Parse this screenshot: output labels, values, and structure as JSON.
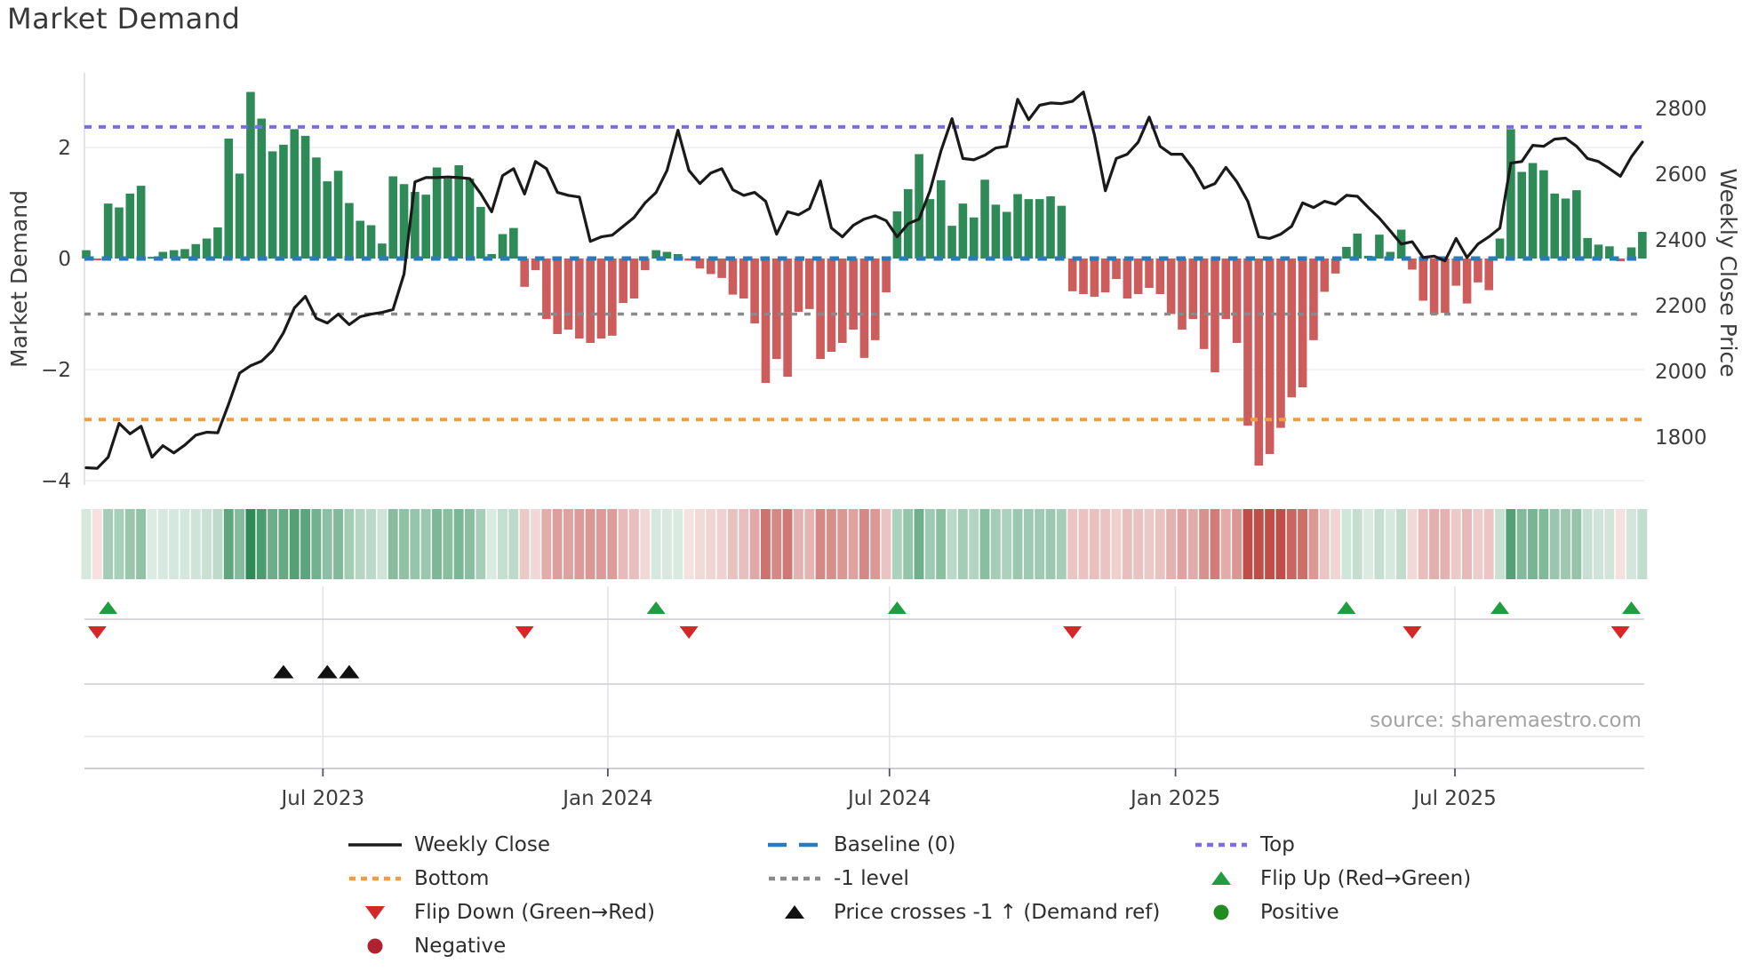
{
  "title": "Market Demand",
  "source": "source: sharemaestro.com",
  "colors": {
    "bar_positive": "#2E8B57",
    "bar_negative": "#CD5C5C",
    "heat_positive": "#2E8B57",
    "heat_negative": "#C04D48",
    "price_line": "#1a1a1a",
    "baseline": "#2b7bba",
    "top_line": "#7b6fde",
    "minus_one_line": "#8a8a8a",
    "bottom_line": "#ef9c42",
    "flip_up": "#1f9d3f",
    "flip_down": "#d62728",
    "price_cross": "#111111",
    "positive_dot": "#228B22",
    "negative_dot": "#b02230",
    "grid": "#ededf3",
    "panel_grid": "#ccccd4",
    "spine": "#d8d8e0",
    "text": "#3c3c3c",
    "muted_text": "#a3a3a3"
  },
  "chart_data": {
    "type": "bar+line combo with signal heatmap",
    "title": "Market Demand",
    "left_axis": {
      "label": "Market Demand",
      "tick_labels": [
        "2",
        "0",
        "−2",
        "−4"
      ],
      "tick_values": [
        2,
        0,
        -2,
        -4
      ],
      "ylim": [
        -4.35,
        3.35
      ]
    },
    "right_axis": {
      "label": "Weekly Close Price",
      "tick_values": [
        2800,
        2600,
        2400,
        2200,
        2000,
        1800
      ]
    },
    "x_ticks": [
      {
        "label": "Jul 2023",
        "week": 21.6
      },
      {
        "label": "Jan 2024",
        "week": 47.6
      },
      {
        "label": "Jul 2024",
        "week": 73.3
      },
      {
        "label": "Jan 2025",
        "week": 99.4
      },
      {
        "label": "Jul 2025",
        "week": 124.9
      }
    ],
    "reference_lines": {
      "top": 2.37,
      "baseline": 0,
      "minus_one": -1,
      "bottom": -2.9
    },
    "demand": [
      0.15,
      -0.03,
      0.99,
      0.92,
      1.17,
      1.31,
      0.03,
      0.12,
      0.15,
      0.17,
      0.26,
      0.36,
      0.56,
      2.16,
      1.53,
      3.0,
      2.52,
      1.93,
      2.05,
      2.33,
      2.21,
      1.82,
      1.39,
      1.58,
      1.0,
      0.68,
      0.6,
      0.27,
      1.48,
      1.34,
      1.2,
      1.15,
      1.64,
      1.44,
      1.68,
      1.44,
      0.93,
      0.08,
      0.44,
      0.55,
      -0.51,
      -0.21,
      -1.09,
      -1.36,
      -1.28,
      -1.44,
      -1.52,
      -1.44,
      -1.39,
      -0.8,
      -0.72,
      -0.21,
      0.15,
      0.12,
      0.08,
      -0.04,
      -0.18,
      -0.28,
      -0.35,
      -0.65,
      -0.72,
      -1.17,
      -2.24,
      -1.81,
      -2.13,
      -0.96,
      -0.91,
      -1.81,
      -1.68,
      -1.52,
      -1.28,
      -1.79,
      -1.47,
      -0.61,
      0.85,
      1.25,
      1.88,
      1.07,
      1.41,
      0.59,
      0.99,
      0.74,
      1.42,
      0.97,
      0.84,
      1.16,
      1.07,
      1.07,
      1.12,
      0.95,
      -0.59,
      -0.64,
      -0.69,
      -0.61,
      -0.37,
      -0.72,
      -0.64,
      -0.53,
      -0.64,
      -1.0,
      -1.28,
      -1.09,
      -1.63,
      -2.05,
      -1.09,
      -1.52,
      -3.01,
      -3.73,
      -3.52,
      -3.05,
      -2.5,
      -2.32,
      -1.47,
      -0.6,
      -0.27,
      0.21,
      0.45,
      0.05,
      0.43,
      0.12,
      0.52,
      -0.2,
      -0.76,
      -1.01,
      -0.98,
      -0.49,
      -0.81,
      -0.43,
      -0.57,
      0.36,
      2.33,
      1.56,
      1.72,
      1.59,
      1.17,
      1.08,
      1.23,
      0.37,
      0.25,
      0.22,
      -0.05,
      0.2,
      0.48
    ],
    "price": [
      1707,
      1705,
      1739,
      1842,
      1810,
      1833,
      1739,
      1774,
      1752,
      1776,
      1806,
      1815,
      1813,
      1901,
      1995,
      2017,
      2031,
      2063,
      2117,
      2193,
      2228,
      2161,
      2147,
      2174,
      2142,
      2166,
      2174,
      2179,
      2188,
      2296,
      2576,
      2589,
      2589,
      2591,
      2589,
      2586,
      2540,
      2485,
      2595,
      2616,
      2539,
      2638,
      2616,
      2544,
      2535,
      2530,
      2395,
      2409,
      2414,
      2441,
      2468,
      2512,
      2544,
      2611,
      2733,
      2611,
      2571,
      2603,
      2616,
      2552,
      2535,
      2544,
      2517,
      2417,
      2485,
      2476,
      2495,
      2579,
      2436,
      2409,
      2444,
      2463,
      2473,
      2458,
      2409,
      2449,
      2463,
      2549,
      2670,
      2768,
      2647,
      2643,
      2657,
      2679,
      2684,
      2827,
      2765,
      2809,
      2816,
      2814,
      2821,
      2849,
      2719,
      2549,
      2647,
      2660,
      2697,
      2773,
      2684,
      2660,
      2660,
      2616,
      2557,
      2571,
      2620,
      2576,
      2517,
      2409,
      2404,
      2417,
      2441,
      2512,
      2498,
      2517,
      2508,
      2535,
      2532,
      2498,
      2466,
      2427,
      2387,
      2394,
      2346,
      2350,
      2336,
      2404,
      2346,
      2387,
      2409,
      2436,
      2633,
      2638,
      2687,
      2684,
      2706,
      2709,
      2684,
      2647,
      2638,
      2616,
      2593,
      2652,
      2697
    ],
    "signals": {
      "flip_up_weeks": [
        2,
        52,
        74,
        115,
        129,
        141
      ],
      "flip_down_weeks": [
        1,
        40,
        55,
        90,
        121,
        140
      ],
      "price_cross_weeks": [
        18,
        22,
        24
      ]
    }
  },
  "legend": {
    "col1": [
      {
        "label": "Weekly Close",
        "type": "line",
        "color_key": "price_line",
        "name": "weekly-close"
      },
      {
        "label": "Bottom",
        "type": "dots",
        "color_key": "bottom_line",
        "name": "bottom"
      },
      {
        "label": "Flip Down (Green→Red)",
        "type": "tri-down",
        "color_key": "flip_down",
        "name": "flip-down"
      },
      {
        "label": "Negative",
        "type": "dot",
        "color_key": "negative_dot",
        "name": "negative"
      }
    ],
    "col2": [
      {
        "label": "Baseline (0)",
        "type": "dashes",
        "color_key": "baseline",
        "name": "baseline"
      },
      {
        "label": "-1 level",
        "type": "dots",
        "color_key": "minus_one_line",
        "name": "minus-one-level"
      },
      {
        "label": "Price crosses -1 ↑ (Demand ref)",
        "type": "tri-up",
        "color_key": "price_cross",
        "name": "price-crosses"
      }
    ],
    "col3": [
      {
        "label": "Top",
        "type": "dots",
        "color_key": "top_line",
        "name": "top"
      },
      {
        "label": "Flip Up (Red→Green)",
        "type": "tri-up",
        "color_key": "flip_up",
        "name": "flip-up"
      },
      {
        "label": "Positive",
        "type": "dot",
        "color_key": "positive_dot",
        "name": "positive"
      }
    ]
  }
}
